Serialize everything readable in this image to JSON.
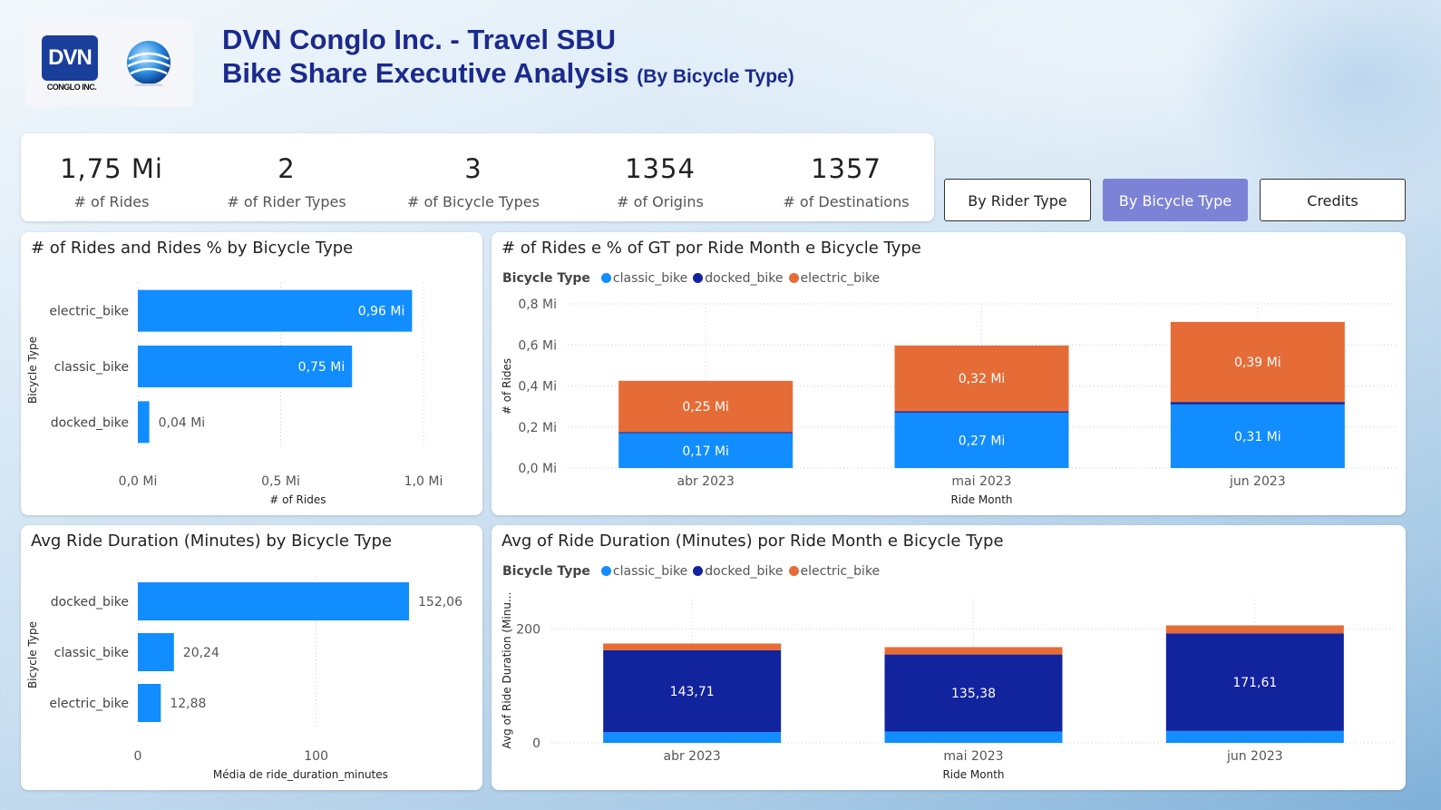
{
  "header": {
    "logo_text": "DVN",
    "logo_subtext": "CONGLO INC.",
    "title_line1": "DVN Conglo Inc. - Travel SBU",
    "title_line2": "Bike Share Executive Analysis",
    "title_suffix": "(By Bicycle Type)"
  },
  "kpis": [
    {
      "value": "1,75 Mi",
      "label": "# of Rides"
    },
    {
      "value": "2",
      "label": "# of Rider Types"
    },
    {
      "value": "3",
      "label": "# of Bicycle Types"
    },
    {
      "value": "1354",
      "label": "# of Origins"
    },
    {
      "value": "1357",
      "label": "# of Destinations"
    }
  ],
  "nav": {
    "by_rider_type": "By Rider Type",
    "by_bicycle_type": "By Bicycle Type",
    "credits": "Credits"
  },
  "colors": {
    "classic_bike": "#118dff",
    "docked_bike": "#12239e",
    "electric_bike": "#e66c37",
    "accent_button": "#7c83d6",
    "title_text": "#1b2a8c"
  },
  "chart_data": [
    {
      "id": "rides_by_type",
      "type": "bar",
      "orientation": "horizontal",
      "title": "# of Rides and Rides % by Bicycle Type",
      "xlabel": "# of Rides",
      "ylabel": "Bicycle Type",
      "categories": [
        "electric_bike",
        "classic_bike",
        "docked_bike"
      ],
      "values": [
        0.96,
        0.75,
        0.04
      ],
      "data_labels": [
        "0,96 Mi",
        "0,75 Mi",
        "0,04 Mi"
      ],
      "xlim": [
        0,
        1.0
      ],
      "xticks": [
        0,
        0.5,
        1.0
      ],
      "xtick_labels": [
        "0,0 Mi",
        "0,5 Mi",
        "1,0 Mi"
      ],
      "grid": true
    },
    {
      "id": "rides_by_month",
      "type": "bar",
      "stacked": true,
      "title": "# of Rides e % of GT por Ride Month e Bicycle Type",
      "xlabel": "Ride Month",
      "ylabel": "# of Rides",
      "legend_title": "Bicycle Type",
      "legend_position": "top-left",
      "categories": [
        "abr 2023",
        "mai 2023",
        "jun 2023"
      ],
      "series": [
        {
          "name": "classic_bike",
          "values": [
            0.17,
            0.27,
            0.31
          ],
          "labels": [
            "0,17 Mi",
            "0,27 Mi",
            "0,31 Mi"
          ]
        },
        {
          "name": "docked_bike",
          "values": [
            0.005,
            0.007,
            0.012
          ],
          "labels": [
            "",
            "",
            ""
          ]
        },
        {
          "name": "electric_bike",
          "values": [
            0.25,
            0.32,
            0.39
          ],
          "labels": [
            "0,25 Mi",
            "0,32 Mi",
            "0,39 Mi"
          ]
        }
      ],
      "ylim": [
        0,
        0.8
      ],
      "yticks": [
        0,
        0.2,
        0.4,
        0.6,
        0.8
      ],
      "ytick_labels": [
        "0,0 Mi",
        "0,2 Mi",
        "0,4 Mi",
        "0,6 Mi",
        "0,8 Mi"
      ],
      "grid": true
    },
    {
      "id": "duration_by_type",
      "type": "bar",
      "orientation": "horizontal",
      "title": "Avg Ride Duration (Minutes) by Bicycle Type",
      "xlabel": "Média de ride_duration_minutes",
      "ylabel": "Bicycle Type",
      "categories": [
        "docked_bike",
        "classic_bike",
        "electric_bike"
      ],
      "values": [
        152.06,
        20.24,
        12.88
      ],
      "data_labels": [
        "152,06",
        "20,24",
        "12,88"
      ],
      "xlim": [
        0,
        152.06
      ],
      "xticks": [
        0,
        100
      ],
      "xtick_labels": [
        "0",
        "100"
      ],
      "grid": true
    },
    {
      "id": "duration_by_month",
      "type": "bar",
      "stacked": true,
      "title": "Avg of Ride Duration (Minutes) por Ride Month e Bicycle Type",
      "xlabel": "Ride Month",
      "ylabel": "Avg of Ride Duration (Minu...",
      "legend_title": "Bicycle Type",
      "legend_position": "top-left",
      "categories": [
        "abr 2023",
        "mai 2023",
        "jun 2023"
      ],
      "series": [
        {
          "name": "classic_bike",
          "values": [
            19,
            20,
            21
          ],
          "labels": [
            "",
            "",
            ""
          ]
        },
        {
          "name": "docked_bike",
          "values": [
            143.71,
            135.38,
            171.61
          ],
          "labels": [
            "143,71",
            "135,38",
            "171,61"
          ]
        },
        {
          "name": "electric_bike",
          "values": [
            12,
            13,
            14
          ],
          "labels": [
            "",
            "",
            ""
          ]
        }
      ],
      "ylim": [
        0,
        252
      ],
      "yticks": [
        0,
        200
      ],
      "ytick_labels": [
        "0",
        "200"
      ],
      "grid": true
    }
  ]
}
